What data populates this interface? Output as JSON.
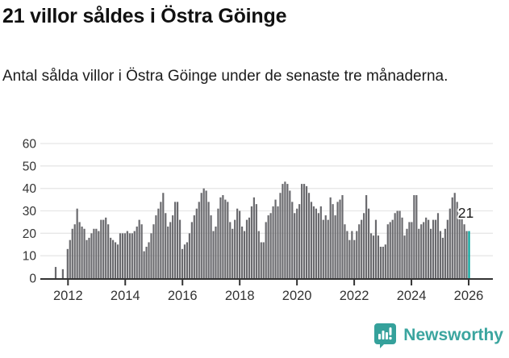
{
  "title": "21 villor såldes i Östra Göinge",
  "subtitle": "Antal sålda villor i Östra Göinge under de senaste tre månaderna.",
  "branding": {
    "name": "Newsworthy",
    "icon": "bar-chart-speech-bubble",
    "color": "#3BA59F"
  },
  "colors": {
    "bar": "#6A6A6E",
    "highlight": "#00A29A",
    "axis": "#333333",
    "grid": "#E7E7E7",
    "annotation_text": "#1A1A1A",
    "background": "#FFFFFF"
  },
  "chart_data": {
    "type": "bar",
    "title": "21 villor såldes i Östra Göinge",
    "xlabel": "",
    "ylabel": "",
    "ylim": [
      0,
      60
    ],
    "yticks": [
      0,
      10,
      20,
      30,
      40,
      50,
      60
    ],
    "xticks": [
      "2012",
      "2014",
      "2016",
      "2018",
      "2020",
      "2022",
      "2024",
      "2026"
    ],
    "grid": true,
    "legend": false,
    "frequency": "monthly",
    "x_start": "2011-08",
    "x_end": "2026-01",
    "annotation": {
      "text": "21",
      "applies_to": "last-bar"
    },
    "highlight_last_value": 21,
    "series": [
      {
        "name": "Antal sålda villor, rullande 3 månader",
        "values": [
          5,
          0,
          0,
          4,
          0,
          13,
          17,
          22,
          24,
          31,
          25,
          23,
          22,
          17,
          18,
          20,
          22,
          22,
          21,
          26,
          26,
          27,
          24,
          18,
          17,
          16,
          15,
          20,
          20,
          20,
          21,
          20,
          20,
          21,
          23,
          26,
          24,
          12,
          14,
          16,
          20,
          24,
          28,
          31,
          34,
          38,
          29,
          23,
          25,
          28,
          34,
          34,
          26,
          13,
          15,
          16,
          20,
          25,
          28,
          31,
          34,
          38,
          40,
          39,
          34,
          28,
          21,
          23,
          31,
          36,
          37,
          35,
          34,
          25,
          22,
          26,
          31,
          30,
          23,
          21,
          26,
          27,
          32,
          36,
          33,
          21,
          16,
          16,
          25,
          28,
          29,
          32,
          35,
          32,
          38,
          42,
          43,
          42,
          39,
          34,
          29,
          31,
          33,
          42,
          42,
          41,
          38,
          34,
          32,
          31,
          29,
          32,
          26,
          28,
          26,
          36,
          33,
          28,
          34,
          35,
          37,
          24,
          21,
          17,
          21,
          17,
          21,
          24,
          26,
          29,
          37,
          31,
          20,
          19,
          26,
          19,
          14,
          14,
          15,
          24,
          25,
          26,
          29,
          30,
          30,
          27,
          19,
          22,
          25,
          25,
          37,
          37,
          22,
          24,
          25,
          27,
          26,
          22,
          26,
          26,
          29,
          21,
          18,
          22,
          26,
          31,
          36,
          38,
          34,
          29,
          27,
          24,
          21,
          21
        ]
      }
    ]
  }
}
